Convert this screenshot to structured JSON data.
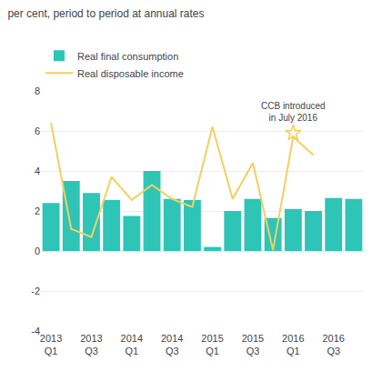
{
  "chart_data": {
    "type": "bar",
    "title": "per cent, period to period at annual rates",
    "categories": [
      "2013\nQ1",
      null,
      "2013\nQ3",
      null,
      "2014\nQ1",
      null,
      "2014\nQ3",
      null,
      "2015\nQ1",
      null,
      "2015\nQ3",
      null,
      "2016\nQ1",
      null,
      "2016\nQ3",
      null
    ],
    "series": [
      {
        "name": "Real final consumption",
        "type": "bar",
        "color": "#2EC4B6",
        "values": [
          2.4,
          3.5,
          2.9,
          2.55,
          1.75,
          4.0,
          2.6,
          2.55,
          0.2,
          2.0,
          2.6,
          1.65,
          2.1,
          2.0,
          2.65,
          2.6
        ]
      },
      {
        "name": "Real disposable income",
        "type": "line",
        "color": "#F0D060",
        "values": [
          6.4,
          1.1,
          0.7,
          3.7,
          2.55,
          3.3,
          2.6,
          2.2,
          6.2,
          2.6,
          4.4,
          0.05,
          5.7,
          4.8,
          null,
          null
        ]
      }
    ],
    "annotations": [
      {
        "text": "CCB introduced\nin July 2016",
        "x": "2016\nQ1",
        "y": 5.9,
        "marker": "star",
        "color": "#F0D060"
      }
    ],
    "ylim": [
      -4,
      8
    ],
    "yticks": [
      -4,
      -2,
      0,
      2,
      4,
      6,
      8
    ],
    "grid": true,
    "legend": "upper left"
  }
}
